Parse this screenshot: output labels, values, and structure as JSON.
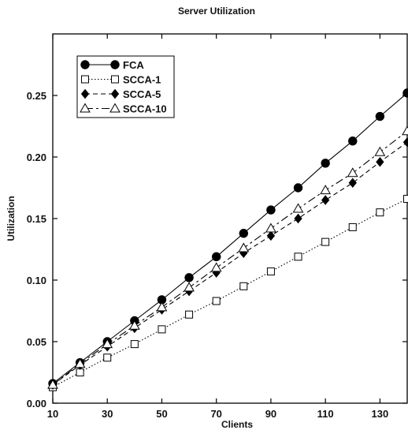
{
  "chart_data": {
    "type": "line",
    "title": "Server Utilization",
    "xlabel": "Clients",
    "ylabel": "Utilization",
    "xlim": [
      10,
      140
    ],
    "ylim": [
      0.0,
      0.3
    ],
    "xticks": [
      10,
      30,
      50,
      70,
      90,
      110,
      130
    ],
    "yticks": [
      0.0,
      0.05,
      0.1,
      0.15,
      0.2,
      0.25
    ],
    "xtick_labels": [
      "10",
      "30",
      "50",
      "70",
      "90",
      "110",
      "130"
    ],
    "ytick_labels": [
      "0.00",
      "0.05",
      "0.10",
      "0.15",
      "0.20",
      "0.25"
    ],
    "grid": false,
    "legend_position": "top-left",
    "x": [
      10,
      20,
      30,
      40,
      50,
      60,
      70,
      80,
      90,
      100,
      110,
      120,
      130,
      140
    ],
    "series": [
      {
        "name": "FCA",
        "marker": "filled-circle",
        "dash": "solid",
        "values": [
          0.016,
          0.033,
          0.05,
          0.067,
          0.084,
          0.102,
          0.119,
          0.138,
          0.157,
          0.175,
          0.195,
          0.213,
          0.233,
          0.252
        ]
      },
      {
        "name": "SCCA-1",
        "marker": "open-square",
        "dash": "dotted",
        "values": [
          0.013,
          0.025,
          0.037,
          0.048,
          0.06,
          0.072,
          0.083,
          0.095,
          0.107,
          0.119,
          0.131,
          0.143,
          0.155,
          0.166
        ]
      },
      {
        "name": "SCCA-5",
        "marker": "filled-diamond",
        "dash": "dashed",
        "values": [
          0.015,
          0.031,
          0.046,
          0.061,
          0.076,
          0.091,
          0.106,
          0.122,
          0.136,
          0.15,
          0.165,
          0.179,
          0.196,
          0.212
        ]
      },
      {
        "name": "SCCA-10",
        "marker": "open-triangle",
        "dash": "longdash",
        "values": [
          0.015,
          0.032,
          0.048,
          0.063,
          0.078,
          0.094,
          0.11,
          0.126,
          0.142,
          0.158,
          0.173,
          0.187,
          0.204,
          0.221
        ]
      }
    ]
  }
}
